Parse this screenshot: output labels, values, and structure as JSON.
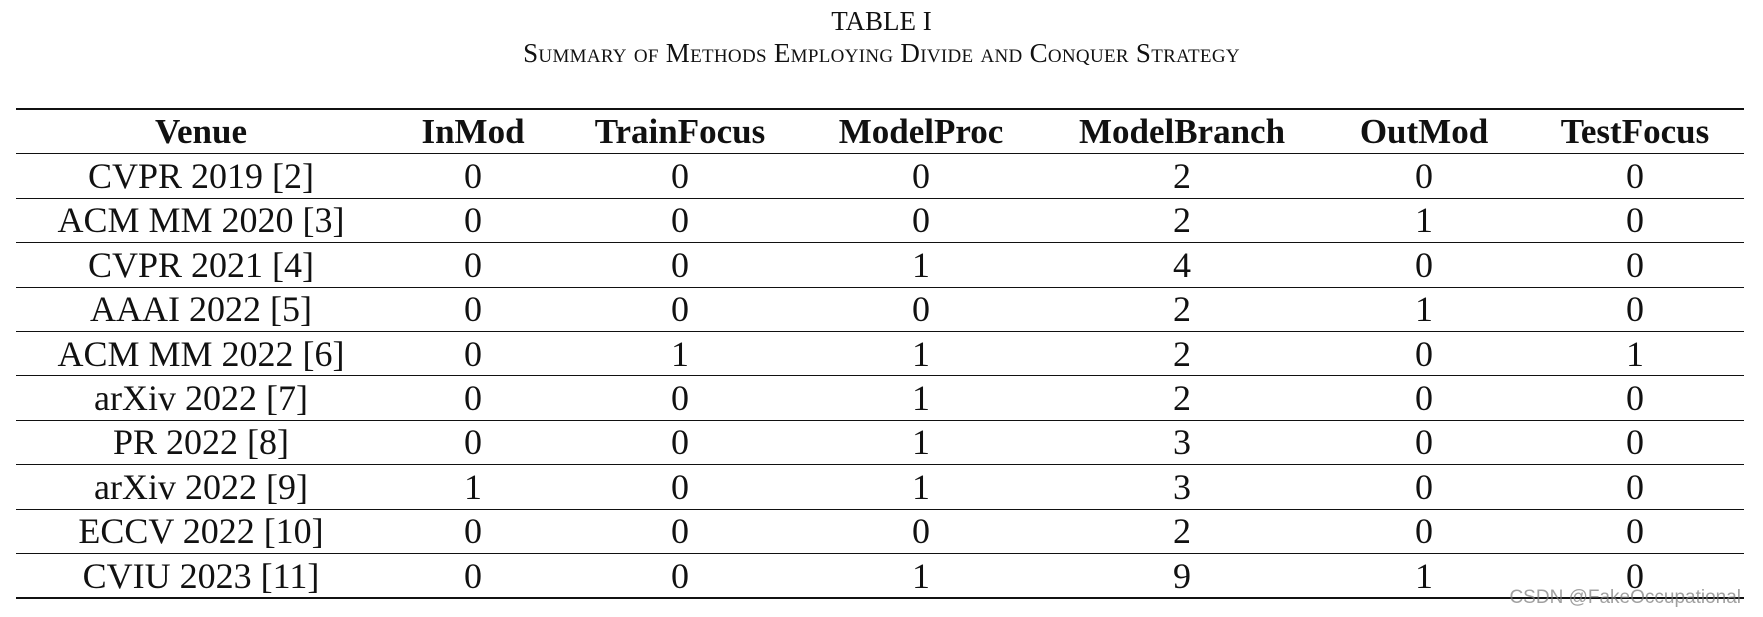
{
  "caption": {
    "label": "TABLE I",
    "title": "Summary of Methods Employing Divide and Conquer Strategy"
  },
  "table": {
    "header": [
      "Venue",
      "InMod",
      "TrainFocus",
      "ModelProc",
      "ModelBranch",
      "OutMod",
      "TestFocus"
    ],
    "rows": [
      [
        "CVPR 2019 [2]",
        0,
        0,
        0,
        2,
        0,
        0
      ],
      [
        "ACM MM 2020 [3]",
        0,
        0,
        0,
        2,
        1,
        0
      ],
      [
        "CVPR 2021 [4]",
        0,
        0,
        1,
        4,
        0,
        0
      ],
      [
        "AAAI 2022 [5]",
        0,
        0,
        0,
        2,
        1,
        0
      ],
      [
        "ACM MM 2022 [6]",
        0,
        1,
        1,
        2,
        0,
        1
      ],
      [
        "arXiv 2022 [7]",
        0,
        0,
        1,
        2,
        0,
        0
      ],
      [
        "PR 2022 [8]",
        0,
        0,
        1,
        3,
        0,
        0
      ],
      [
        "arXiv 2022 [9]",
        1,
        0,
        1,
        3,
        0,
        0
      ],
      [
        "ECCV 2022 [10]",
        0,
        0,
        0,
        2,
        0,
        0
      ],
      [
        "CVIU 2023 [11]",
        0,
        0,
        1,
        9,
        1,
        0
      ]
    ]
  },
  "watermark": "CSDN @FakeOccupational"
}
